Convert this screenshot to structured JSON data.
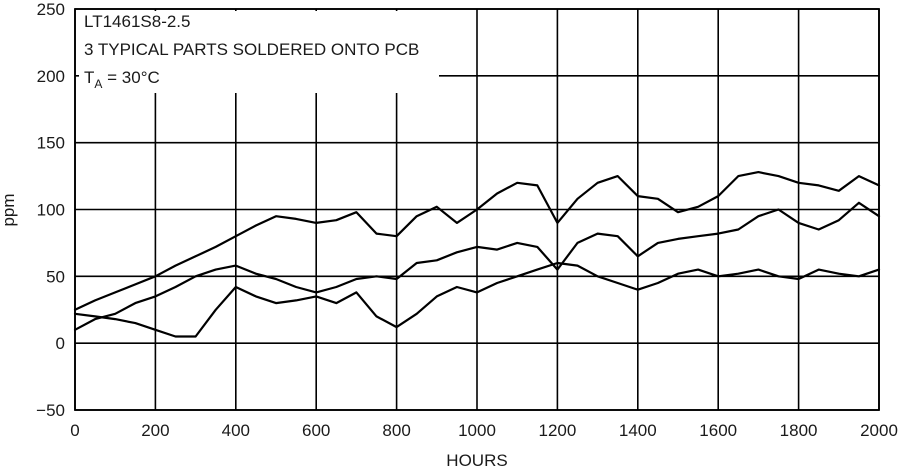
{
  "chart_data": {
    "type": "line",
    "title": "",
    "xlabel": "HOURS",
    "ylabel": "ppm",
    "xlim": [
      0,
      2000
    ],
    "ylim": [
      -50,
      250
    ],
    "x_ticks": [
      0,
      200,
      400,
      600,
      800,
      1000,
      1200,
      1400,
      1600,
      1800,
      2000
    ],
    "y_ticks": [
      -50,
      0,
      50,
      100,
      150,
      200,
      250
    ],
    "grid": true,
    "annotation": {
      "line1": "LT1461S8-2.5",
      "line2": "3 TYPICAL PARTS SOLDERED ONTO PCB",
      "line3_main": "T",
      "line3_sub": "A",
      "line3_rest": " = 30°C"
    },
    "series": [
      {
        "x": [
          0,
          50,
          100,
          150,
          200,
          250,
          300,
          350,
          400,
          450,
          500,
          550,
          600,
          650,
          700,
          750,
          800,
          850,
          900,
          950,
          1000,
          1050,
          1100,
          1150,
          1200,
          1250,
          1300,
          1350,
          1400,
          1450,
          1500,
          1550,
          1600,
          1650,
          1700,
          1750,
          1800,
          1850,
          1900,
          1950,
          2000
        ],
        "y": [
          25,
          32,
          38,
          44,
          50,
          58,
          65,
          72,
          80,
          88,
          95,
          93,
          90,
          92,
          98,
          82,
          80,
          95,
          102,
          90,
          100,
          112,
          120,
          118,
          90,
          108,
          120,
          125,
          110,
          108,
          98,
          102,
          110,
          125,
          128,
          125,
          120,
          118,
          114,
          125,
          118
        ]
      },
      {
        "x": [
          0,
          50,
          100,
          150,
          200,
          250,
          300,
          350,
          400,
          450,
          500,
          550,
          600,
          650,
          700,
          750,
          800,
          850,
          900,
          950,
          1000,
          1050,
          1100,
          1150,
          1200,
          1250,
          1300,
          1350,
          1400,
          1450,
          1500,
          1550,
          1600,
          1650,
          1700,
          1750,
          1800,
          1850,
          1900,
          1950,
          2000
        ],
        "y": [
          10,
          18,
          22,
          30,
          35,
          42,
          50,
          55,
          58,
          52,
          48,
          42,
          38,
          42,
          48,
          50,
          48,
          60,
          62,
          68,
          72,
          70,
          75,
          72,
          55,
          75,
          82,
          80,
          65,
          75,
          78,
          80,
          82,
          85,
          95,
          100,
          90,
          85,
          92,
          105,
          95
        ]
      },
      {
        "x": [
          0,
          50,
          100,
          150,
          200,
          250,
          300,
          350,
          400,
          450,
          500,
          550,
          600,
          650,
          700,
          750,
          800,
          850,
          900,
          950,
          1000,
          1050,
          1100,
          1150,
          1200,
          1250,
          1300,
          1350,
          1400,
          1450,
          1500,
          1550,
          1600,
          1650,
          1700,
          1750,
          1800,
          1850,
          1900,
          1950,
          2000
        ],
        "y": [
          22,
          20,
          18,
          15,
          10,
          5,
          5,
          25,
          42,
          35,
          30,
          32,
          35,
          30,
          38,
          20,
          12,
          22,
          35,
          42,
          38,
          45,
          50,
          55,
          60,
          58,
          50,
          45,
          40,
          45,
          52,
          55,
          50,
          52,
          55,
          50,
          48,
          55,
          52,
          50,
          55
        ]
      }
    ]
  }
}
